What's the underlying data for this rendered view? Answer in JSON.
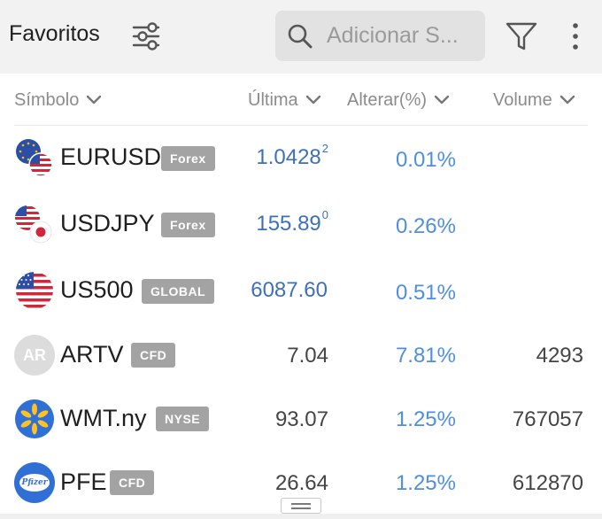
{
  "header": {
    "title": "Favoritos",
    "search_placeholder": "Adicionar S..."
  },
  "columns": {
    "symbol": "Símbolo",
    "last": "Última",
    "change": "Alterar(%)",
    "volume": "Volume"
  },
  "rows": [
    {
      "symbol": "EURUSD",
      "badge": "Forex",
      "last": "1.0428",
      "last_sup": "2",
      "change": "0.01%",
      "volume": ""
    },
    {
      "symbol": "USDJPY",
      "badge": "Forex",
      "last": "155.89",
      "last_sup": "0",
      "change": "0.26%",
      "volume": ""
    },
    {
      "symbol": "US500",
      "badge": "GLOBAL",
      "last": "6087.60",
      "last_sup": "",
      "change": "0.51%",
      "volume": ""
    },
    {
      "symbol": "ARTV",
      "badge": "CFD",
      "last": "7.04",
      "last_sup": "",
      "change": "7.81%",
      "volume": "4293",
      "avatar_text": "AR"
    },
    {
      "symbol": "WMT.ny",
      "badge": "NYSE",
      "last": "93.07",
      "last_sup": "",
      "change": "1.25%",
      "volume": "767057"
    },
    {
      "symbol": "PFE",
      "badge": "CFD",
      "last": "26.64",
      "last_sup": "",
      "change": "1.25%",
      "volume": "612870",
      "logo_text": "Pfizer"
    }
  ],
  "colors": {
    "accent_blue": "#3d6fc0",
    "change_blue": "#4f8fdd",
    "badge_gray": "#a3a3a3",
    "header_bg": "#f2f2f2"
  },
  "icons": {
    "settings": "sliders-icon",
    "search": "search-icon",
    "filter": "funnel-icon",
    "more": "more-vertical-icon"
  }
}
